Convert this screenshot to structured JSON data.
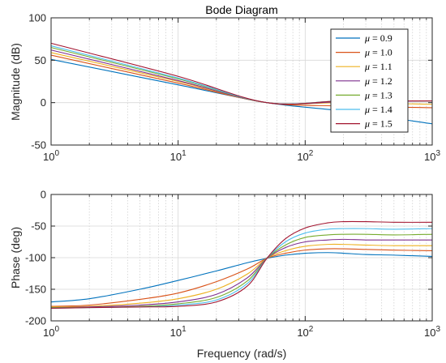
{
  "chart_data": [
    {
      "type": "line",
      "title": "Bode Diagram",
      "ylabel": "Magnitude (dB)",
      "xlabel": "",
      "xscale": "log",
      "xlim": [
        1,
        1000
      ],
      "ylim": [
        -50,
        100
      ],
      "xticks": [
        1,
        10,
        100,
        1000
      ],
      "xtick_labels": [
        {
          "base": "10",
          "exp": "0"
        },
        {
          "base": "10",
          "exp": "1"
        },
        {
          "base": "10",
          "exp": "2"
        },
        {
          "base": "10",
          "exp": "3"
        }
      ],
      "yticks": [
        -50,
        0,
        50,
        100
      ],
      "ytick_labels": [
        "-50",
        "0",
        "50",
        "100"
      ],
      "grid": true,
      "legend": "top-right",
      "legend_symbol": "μ",
      "x": [
        1,
        10,
        50,
        200,
        1000
      ],
      "series": [
        {
          "name": "= 0.9",
          "color": "#0072BD",
          "values": [
            51,
            21,
            0,
            -10,
            -25
          ]
        },
        {
          "name": "= 1.0",
          "color": "#D95319",
          "values": [
            56,
            23,
            0,
            -4,
            -6
          ]
        },
        {
          "name": "= 1.1",
          "color": "#EDB120",
          "values": [
            59,
            25,
            0,
            0,
            -2
          ]
        },
        {
          "name": "= 1.2",
          "color": "#7E2F8E",
          "values": [
            62,
            26,
            0,
            1,
            2
          ]
        },
        {
          "name": "= 1.3",
          "color": "#77AC30",
          "values": [
            65,
            28,
            0,
            2,
            2
          ]
        },
        {
          "name": "= 1.4",
          "color": "#4DBEEE",
          "values": [
            67,
            29,
            0,
            2,
            2
          ]
        },
        {
          "name": "= 1.5",
          "color": "#A2142F",
          "values": [
            70,
            31,
            0,
            2,
            2
          ]
        }
      ]
    },
    {
      "type": "line",
      "title": "",
      "ylabel": "Phase (deg)",
      "xlabel": "Frequency  (rad/s)",
      "xscale": "log",
      "xlim": [
        1,
        1000
      ],
      "ylim": [
        -200,
        0
      ],
      "xticks": [
        1,
        10,
        100,
        1000
      ],
      "xtick_labels": [
        {
          "base": "10",
          "exp": "0"
        },
        {
          "base": "10",
          "exp": "1"
        },
        {
          "base": "10",
          "exp": "2"
        },
        {
          "base": "10",
          "exp": "3"
        }
      ],
      "yticks": [
        -200,
        -150,
        -100,
        -50,
        0
      ],
      "ytick_labels": [
        "-200",
        "-150",
        "-100",
        "-50",
        "0"
      ],
      "grid": true,
      "x": [
        1,
        2,
        5,
        10,
        20,
        35,
        50,
        70,
        100,
        150,
        200,
        300,
        500,
        1000
      ],
      "series": [
        {
          "name": "= 0.9",
          "color": "#0072BD",
          "values": [
            -170,
            -165,
            -150,
            -136,
            -121,
            -108,
            -101,
            -96,
            -93,
            -92,
            -93,
            -95,
            -96,
            -98
          ]
        },
        {
          "name": "= 1.0",
          "color": "#D95319",
          "values": [
            -177,
            -175,
            -166,
            -156,
            -138,
            -118,
            -101,
            -93,
            -88,
            -86,
            -86,
            -87,
            -88,
            -89
          ]
        },
        {
          "name": "= 1.1",
          "color": "#EDB120",
          "values": [
            -178,
            -177,
            -172,
            -165,
            -150,
            -126,
            -101,
            -89,
            -82,
            -79,
            -79,
            -80,
            -81,
            -81
          ]
        },
        {
          "name": "= 1.2",
          "color": "#7E2F8E",
          "values": [
            -179,
            -178,
            -175,
            -170,
            -158,
            -132,
            -101,
            -84,
            -75,
            -72,
            -71,
            -72,
            -72,
            -72
          ]
        },
        {
          "name": "= 1.3",
          "color": "#77AC30",
          "values": [
            -179,
            -179,
            -177,
            -173,
            -163,
            -137,
            -101,
            -80,
            -68,
            -64,
            -63,
            -63,
            -64,
            -63
          ]
        },
        {
          "name": "= 1.4",
          "color": "#4DBEEE",
          "values": [
            -180,
            -179,
            -178,
            -175,
            -167,
            -141,
            -101,
            -75,
            -61,
            -55,
            -54,
            -54,
            -55,
            -54
          ]
        },
        {
          "name": "= 1.5",
          "color": "#A2142F",
          "values": [
            -180,
            -179,
            -178,
            -177,
            -170,
            -145,
            -101,
            -70,
            -53,
            -45,
            -43,
            -43,
            -44,
            -44
          ]
        }
      ]
    }
  ]
}
